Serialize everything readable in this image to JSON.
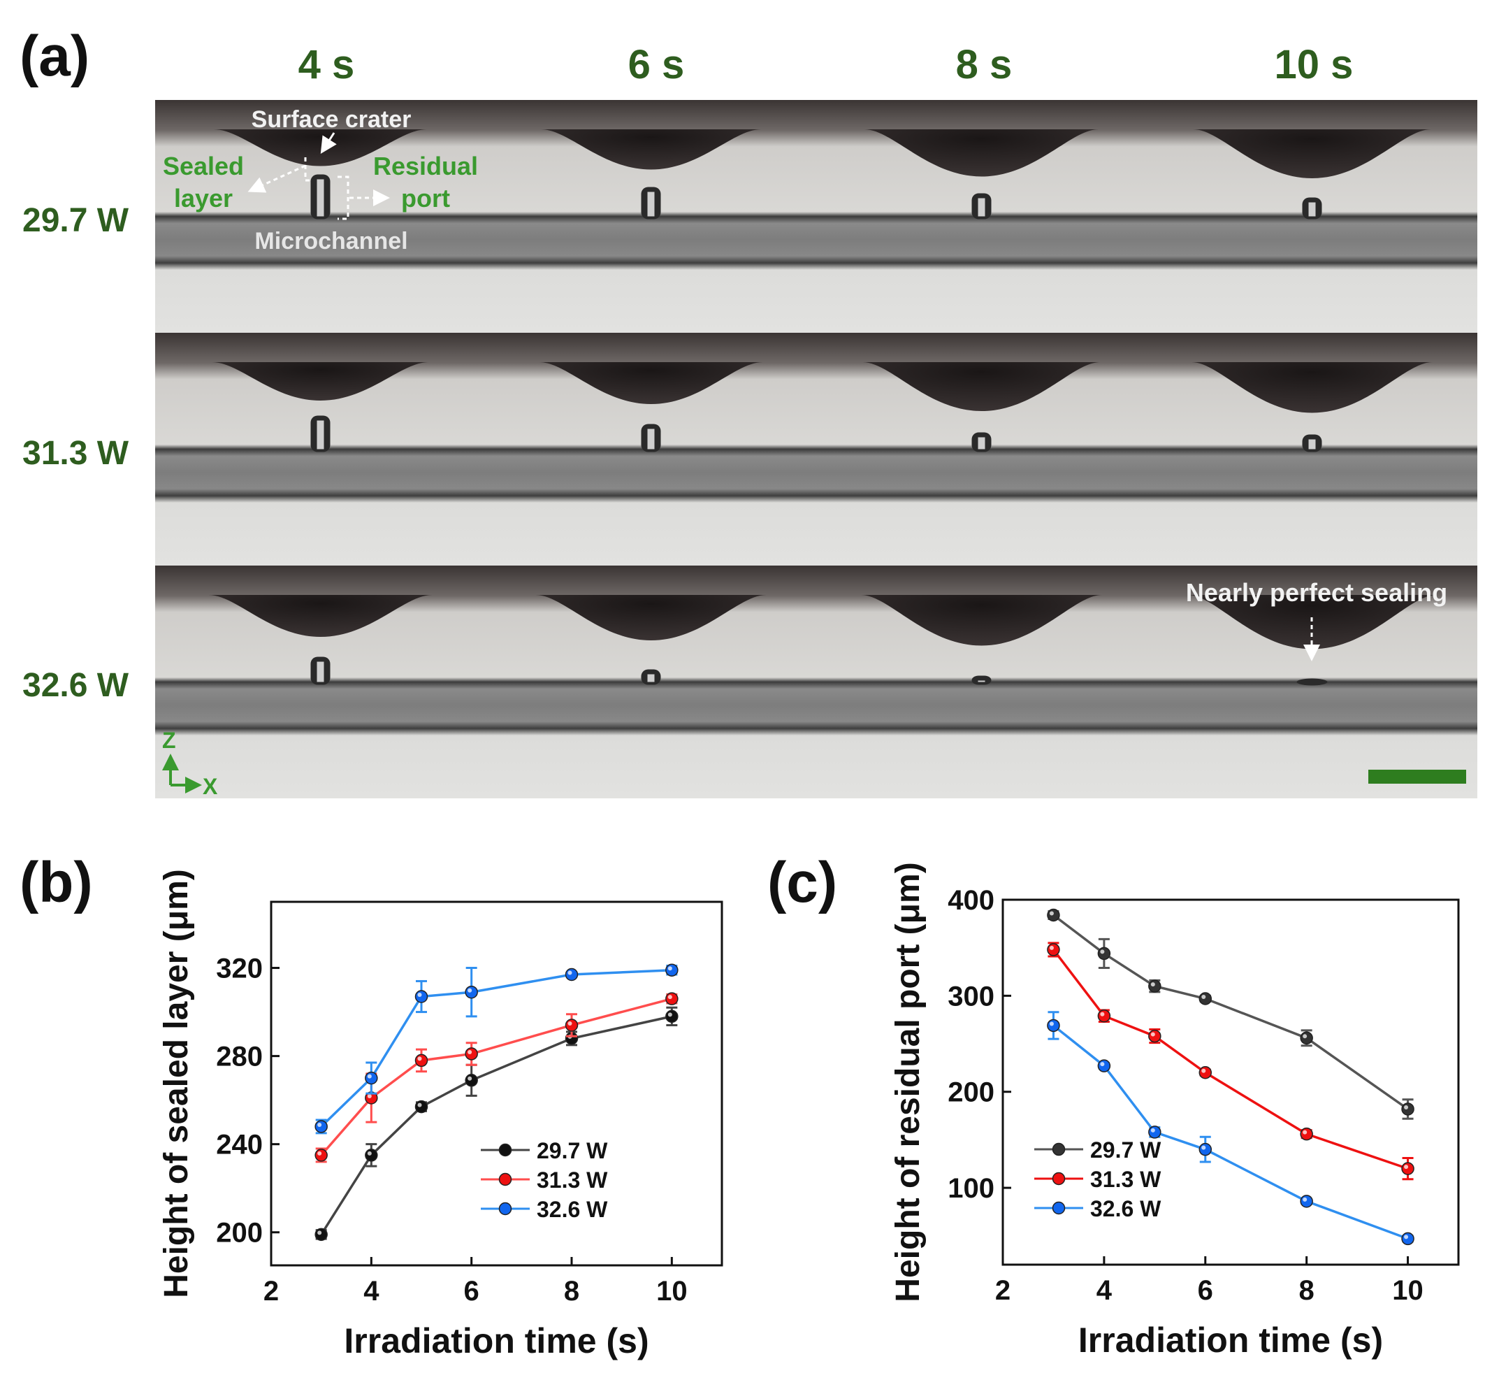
{
  "panel_a": {
    "label": "(a)",
    "time_headers": [
      "4 s",
      "6 s",
      "8 s",
      "10 s"
    ],
    "power_labels": [
      "29.7 W",
      "31.3 W",
      "32.6 W"
    ],
    "annotations": {
      "surface_crater": "Surface crater",
      "sealed_layer_line1": "Sealed",
      "sealed_layer_line2": "layer",
      "residual_port_line1": "Residual",
      "residual_port_line2": "port",
      "microchannel": "Microchannel",
      "nearly_perfect": "Nearly perfect sealing"
    },
    "axis_labels": {
      "z": "Z",
      "x": "X"
    },
    "micrograph_grid": {
      "port_relative_height": [
        [
          1.0,
          0.7,
          0.55,
          0.45
        ],
        [
          0.8,
          0.6,
          0.4,
          0.35
        ],
        [
          0.6,
          0.3,
          0.15,
          0.05
        ]
      ],
      "crater_relative_depth": [
        [
          0.45,
          0.55,
          0.75,
          0.8
        ],
        [
          0.5,
          0.6,
          0.8,
          0.85
        ],
        [
          0.6,
          0.7,
          0.85,
          0.95
        ]
      ]
    },
    "colors": {
      "label_green": "#2e5d1f",
      "annotation_green": "#3a9a2f",
      "scale_bar": "#2e7d1f",
      "annotation_white": "#f2f2f2"
    }
  },
  "chart_data": [
    {
      "type": "line",
      "panel": "(b)",
      "title": "",
      "xlabel": "Irradiation time (s)",
      "ylabel": "Height of sealed layer (μm)",
      "xlim": [
        2,
        11
      ],
      "ylim": [
        185,
        350
      ],
      "xticks": [
        2,
        4,
        6,
        8,
        10
      ],
      "yticks": [
        200,
        240,
        280,
        320
      ],
      "legend_position": "bottom-right",
      "x": [
        3,
        4,
        5,
        6,
        8,
        10
      ],
      "series": [
        {
          "name": "29.7 W",
          "color": "#444444",
          "marker": "#111111",
          "values": [
            199,
            235,
            257,
            269,
            288,
            298
          ],
          "errors": [
            2,
            5,
            2,
            7,
            3,
            4
          ]
        },
        {
          "name": "31.3 W",
          "color": "#ff4d4d",
          "marker": "#ee1111",
          "values": [
            235,
            261,
            278,
            281,
            294,
            306
          ],
          "errors": [
            3,
            11,
            5,
            5,
            5,
            2
          ]
        },
        {
          "name": "32.6 W",
          "color": "#2f8ff0",
          "marker": "#1166ee",
          "values": [
            248,
            270,
            307,
            309,
            317,
            319
          ],
          "errors": [
            3,
            7,
            7,
            11,
            1,
            2
          ]
        }
      ]
    },
    {
      "type": "line",
      "panel": "(c)",
      "title": "",
      "xlabel": "Irradiation time (s)",
      "ylabel": "Height of residual port (μm)",
      "xlim": [
        2,
        11
      ],
      "ylim": [
        20,
        400
      ],
      "xticks": [
        2,
        4,
        6,
        8,
        10
      ],
      "yticks": [
        100,
        200,
        300,
        400
      ],
      "legend_position": "bottom-left",
      "x": [
        3,
        4,
        5,
        6,
        8,
        10
      ],
      "series": [
        {
          "name": "29.7 W",
          "color": "#555555",
          "marker": "#333333",
          "values": [
            384,
            344,
            310,
            297,
            256,
            182
          ],
          "errors": [
            4,
            15,
            6,
            3,
            8,
            10
          ]
        },
        {
          "name": "31.3 W",
          "color": "#ee1111",
          "marker": "#ee1111",
          "values": [
            348,
            279,
            258,
            220,
            156,
            120
          ],
          "errors": [
            7,
            6,
            7,
            3,
            4,
            11
          ]
        },
        {
          "name": "32.6 W",
          "color": "#2f8ff0",
          "marker": "#1166ee",
          "values": [
            269,
            227,
            158,
            140,
            86,
            47
          ],
          "errors": [
            14,
            3,
            5,
            13,
            2,
            3
          ]
        }
      ]
    }
  ]
}
